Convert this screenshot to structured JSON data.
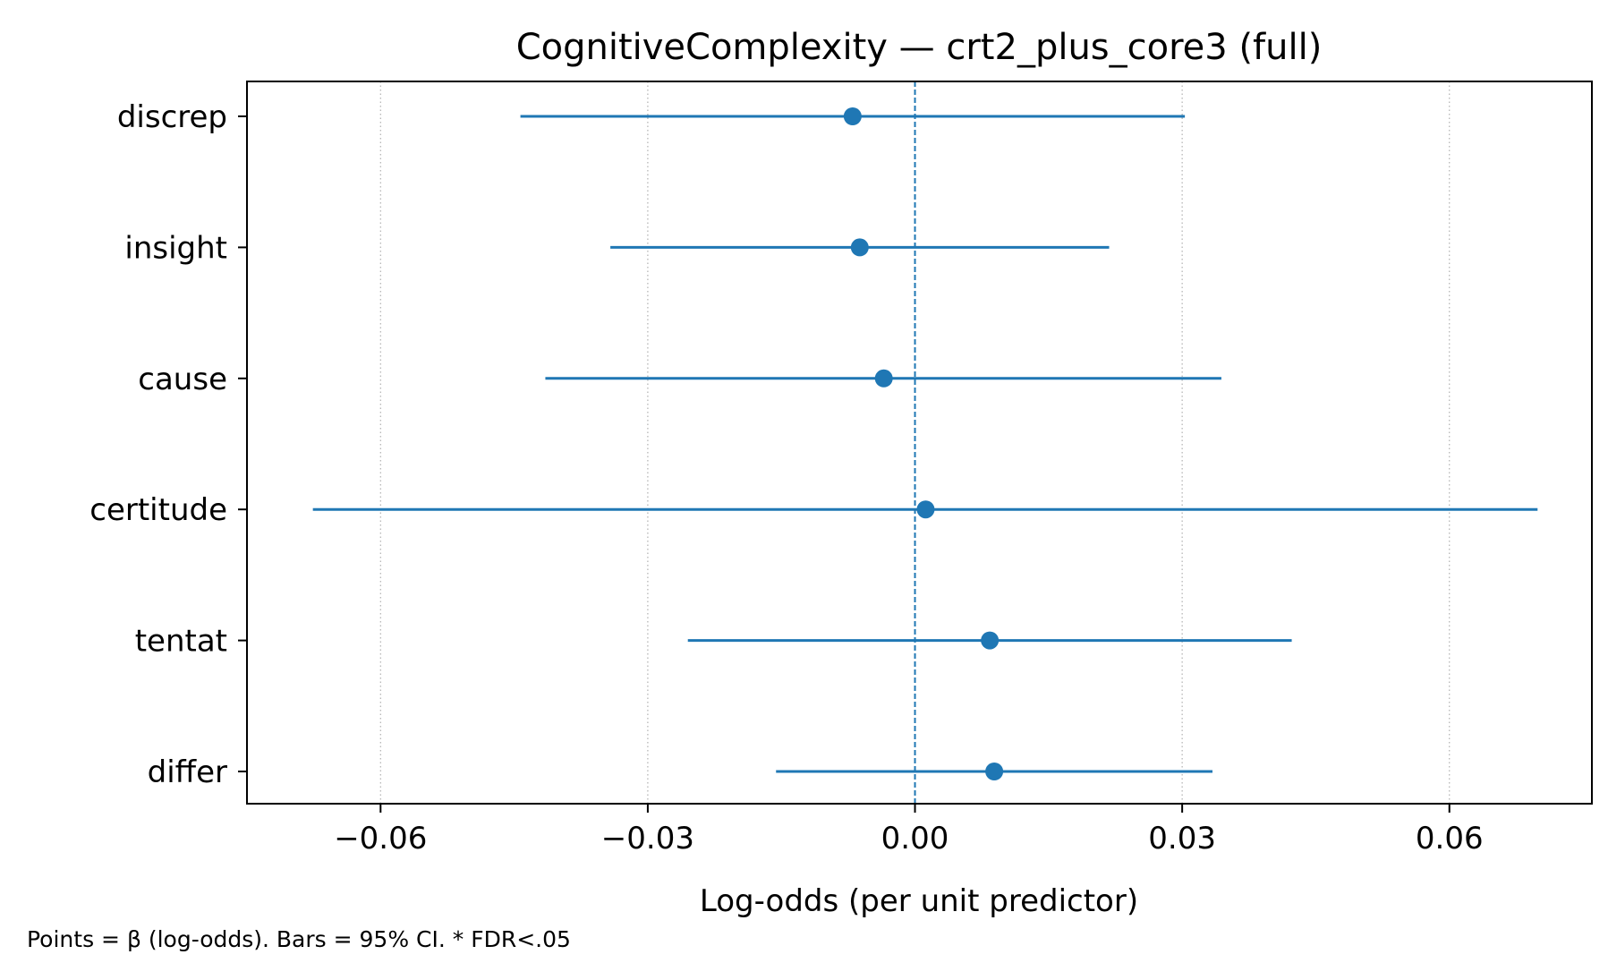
{
  "chart_data": {
    "type": "forest",
    "title": "CognitiveComplexity — crt2_plus_core3 (full)",
    "xlabel": "Log-odds (per unit predictor)",
    "ylabel": "",
    "xlim": [
      -0.075,
      0.076
    ],
    "xticks": [
      -0.06,
      -0.03,
      0.0,
      0.03,
      0.06
    ],
    "xtick_labels": [
      "−0.06",
      "−0.03",
      "0.00",
      "0.03",
      "0.06"
    ],
    "reference_line": 0,
    "grid": "x-dotted",
    "color": "#1f77b4",
    "footnote": "Points = β (log-odds). Bars = 95% CI. * FDR<.05",
    "rows": [
      {
        "label": "discrep",
        "estimate": -0.007,
        "ci_low": -0.0443,
        "ci_high": 0.0303
      },
      {
        "label": "insight",
        "estimate": -0.0062,
        "ci_low": -0.0342,
        "ci_high": 0.0218
      },
      {
        "label": "cause",
        "estimate": -0.0035,
        "ci_low": -0.0415,
        "ci_high": 0.0344
      },
      {
        "label": "certitude",
        "estimate": 0.0012,
        "ci_low": -0.0676,
        "ci_high": 0.0699
      },
      {
        "label": "tentat",
        "estimate": 0.0084,
        "ci_low": -0.0255,
        "ci_high": 0.0423
      },
      {
        "label": "differ",
        "estimate": 0.0089,
        "ci_low": -0.0156,
        "ci_high": 0.0334
      }
    ]
  }
}
